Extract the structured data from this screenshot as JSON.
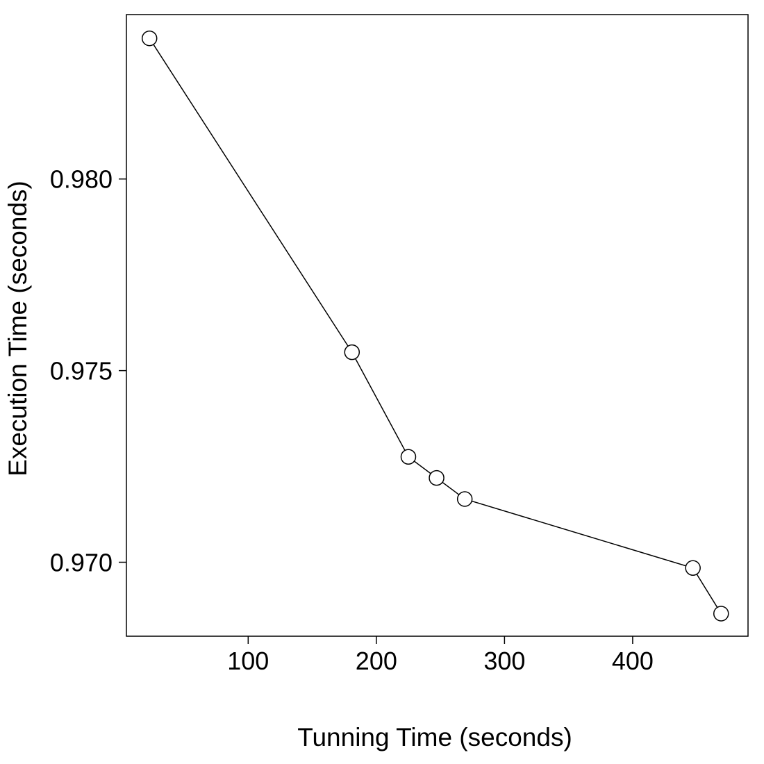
{
  "chart_data": {
    "type": "line",
    "title": "",
    "xlabel": "Tunning Time (seconds)",
    "ylabel": "Execution Time (seconds)",
    "xlim": [
      5,
      490
    ],
    "ylim": [
      0.96807,
      0.98429
    ],
    "xticks": [
      100,
      200,
      300,
      400
    ],
    "xtick_labels": [
      "100",
      "200",
      "300",
      "400"
    ],
    "yticks": [
      0.97,
      0.975,
      0.98
    ],
    "ytick_labels": [
      "0.970",
      "0.975",
      "0.980"
    ],
    "grid": false,
    "legend": "none",
    "series": [
      {
        "marker": "open-circle",
        "line": true,
        "color": "#000000",
        "x": [
          23,
          181,
          225,
          247,
          269,
          447,
          469
        ],
        "y": [
          0.98367,
          0.97548,
          0.97275,
          0.9722,
          0.97165,
          0.96985,
          0.96866
        ]
      }
    ]
  }
}
